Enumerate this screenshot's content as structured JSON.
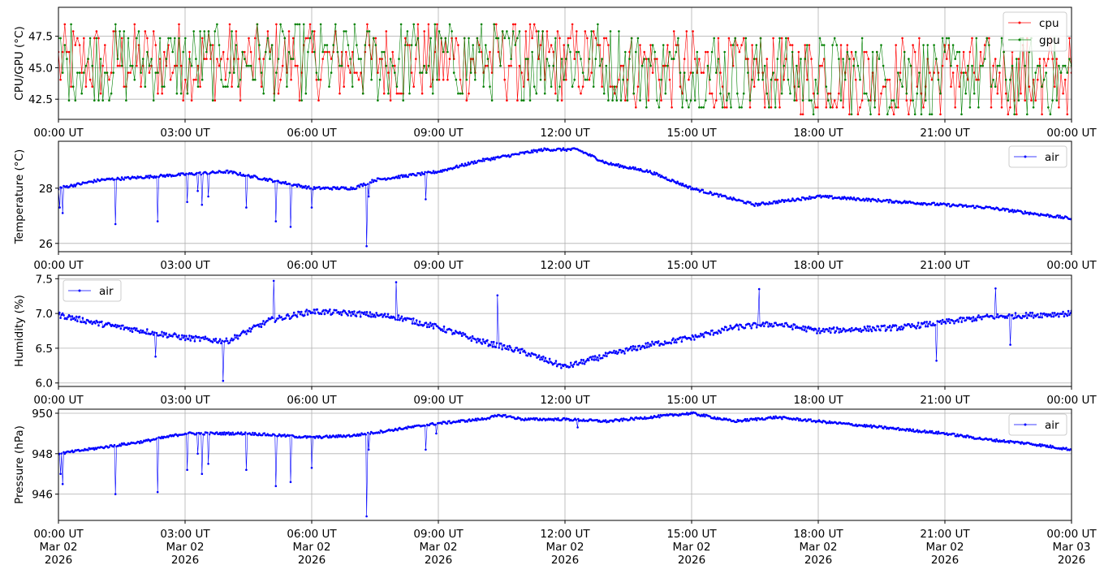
{
  "figure": {
    "x_axis": {
      "time_ticks": [
        "00:00 UT",
        "03:00 UT",
        "06:00 UT",
        "09:00 UT",
        "12:00 UT",
        "15:00 UT",
        "18:00 UT",
        "21:00 UT",
        "00:00 UT"
      ],
      "date_ticks": [
        "Mar 02",
        "Mar 02",
        "Mar 02",
        "Mar 02",
        "Mar 02",
        "Mar 02",
        "Mar 02",
        "Mar 02",
        "Mar 03"
      ],
      "year_ticks": [
        "2026",
        "2026",
        "2026",
        "2026",
        "2026",
        "2026",
        "2026",
        "2026",
        "2026"
      ],
      "range": [
        "2026-03-02T00:00Z",
        "2026-03-03T00:00Z"
      ]
    }
  },
  "colors": {
    "cpu": "#ff0000",
    "gpu": "#008000",
    "air": "#0000ff",
    "grid": "#b0b0b0",
    "axes": "#000000"
  },
  "chart_data": [
    {
      "type": "line",
      "ylabel": "CPU/GPU (°C)",
      "ylim": [
        40.9,
        49.8
      ],
      "yticks": [
        42.5,
        45.0,
        47.5
      ],
      "ytick_labels": [
        "42.5",
        "45.0",
        "47.5"
      ],
      "grid": true,
      "legend": "upper right",
      "legend_entries": [
        "cpu",
        "gpu"
      ],
      "series": [
        {
          "name": "cpu",
          "color_key": "cpu",
          "points_per_day": 480,
          "trend": [
            [
              0,
              45.3
            ],
            [
              12,
              45.6
            ],
            [
              15,
              44.6
            ],
            [
              24,
              44.3
            ]
          ],
          "amplitude": 3.0,
          "outlier": [
            [
              23.3,
              41.3
            ]
          ]
        },
        {
          "name": "gpu",
          "color_key": "gpu",
          "points_per_day": 480,
          "trend": [
            [
              0,
              45.3
            ],
            [
              12,
              45.6
            ],
            [
              15,
              44.6
            ],
            [
              24,
              44.3
            ]
          ],
          "amplitude": 3.0
        }
      ]
    },
    {
      "type": "line",
      "ylabel": "Temperature (°C)",
      "ylim": [
        25.7,
        29.7
      ],
      "yticks": [
        26,
        28
      ],
      "ytick_labels": [
        "26",
        "28"
      ],
      "grid": true,
      "legend": "upper right",
      "legend_entries": [
        "air"
      ],
      "series": [
        {
          "name": "air",
          "color_key": "air",
          "points_per_day": 960,
          "noise": 0.05,
          "trend": [
            [
              0,
              28.0
            ],
            [
              1.0,
              28.3
            ],
            [
              3.0,
              28.5
            ],
            [
              4.0,
              28.6
            ],
            [
              5.0,
              28.3
            ],
            [
              6.0,
              28.0
            ],
            [
              7.0,
              28.0
            ],
            [
              7.5,
              28.3
            ],
            [
              9.0,
              28.6
            ],
            [
              10.0,
              29.0
            ],
            [
              11.5,
              29.4
            ],
            [
              12.3,
              29.4
            ],
            [
              13.0,
              28.9
            ],
            [
              14.0,
              28.6
            ],
            [
              15.0,
              28.0
            ],
            [
              16.0,
              27.6
            ],
            [
              16.5,
              27.4
            ],
            [
              17.0,
              27.5
            ],
            [
              18.0,
              27.7
            ],
            [
              20.0,
              27.5
            ],
            [
              22.0,
              27.3
            ],
            [
              24.0,
              26.9
            ]
          ],
          "spikes": [
            [
              0.03,
              27.3
            ],
            [
              0.1,
              27.1
            ],
            [
              1.35,
              26.7
            ],
            [
              2.35,
              26.8
            ],
            [
              3.05,
              27.5
            ],
            [
              3.3,
              27.9
            ],
            [
              3.4,
              27.4
            ],
            [
              3.55,
              27.7
            ],
            [
              4.45,
              27.3
            ],
            [
              5.15,
              26.8
            ],
            [
              5.5,
              26.6
            ],
            [
              6.0,
              27.3
            ],
            [
              7.3,
              25.9
            ],
            [
              7.35,
              27.7
            ],
            [
              8.7,
              27.6
            ]
          ]
        }
      ]
    },
    {
      "type": "line",
      "ylabel": "Humidity (%)",
      "ylim": [
        5.95,
        7.55
      ],
      "yticks": [
        6.0,
        6.5,
        7.0,
        7.5
      ],
      "ytick_labels": [
        "6.0",
        "6.5",
        "7.0",
        "7.5"
      ],
      "grid": true,
      "legend": "upper left",
      "legend_entries": [
        "air"
      ],
      "series": [
        {
          "name": "air",
          "color_key": "air",
          "points_per_day": 960,
          "noise": 0.04,
          "trend": [
            [
              0,
              6.98
            ],
            [
              1.0,
              6.85
            ],
            [
              2.0,
              6.75
            ],
            [
              3.0,
              6.65
            ],
            [
              4.0,
              6.6
            ],
            [
              5.0,
              6.9
            ],
            [
              6.0,
              7.03
            ],
            [
              7.0,
              7.0
            ],
            [
              8.0,
              6.95
            ],
            [
              9.0,
              6.8
            ],
            [
              10.0,
              6.6
            ],
            [
              11.0,
              6.45
            ],
            [
              12.0,
              6.23
            ],
            [
              13.0,
              6.4
            ],
            [
              14.0,
              6.55
            ],
            [
              15.0,
              6.65
            ],
            [
              16.0,
              6.8
            ],
            [
              17.0,
              6.85
            ],
            [
              18.0,
              6.75
            ],
            [
              20.0,
              6.8
            ],
            [
              22.0,
              6.95
            ],
            [
              24.0,
              7.0
            ]
          ],
          "spikes": [
            [
              2.3,
              6.38
            ],
            [
              3.9,
              6.03
            ],
            [
              5.1,
              7.47
            ],
            [
              8.0,
              7.45
            ],
            [
              10.4,
              7.26
            ],
            [
              16.6,
              7.35
            ],
            [
              20.8,
              6.32
            ],
            [
              22.55,
              6.55
            ],
            [
              22.2,
              7.36
            ]
          ]
        }
      ]
    },
    {
      "type": "line",
      "ylabel": "Pressure (hPa)",
      "ylim": [
        944.7,
        950.2
      ],
      "yticks": [
        946,
        948,
        950
      ],
      "ytick_labels": [
        "946",
        "948",
        "950"
      ],
      "grid": true,
      "legend": "upper right",
      "legend_entries": [
        "air"
      ],
      "series": [
        {
          "name": "air",
          "color_key": "air",
          "points_per_day": 960,
          "noise": 0.06,
          "trend": [
            [
              0,
              948.0
            ],
            [
              1.0,
              948.3
            ],
            [
              2.0,
              948.6
            ],
            [
              3.0,
              949.0
            ],
            [
              4.5,
              949.0
            ],
            [
              6.0,
              948.8
            ],
            [
              7.0,
              948.9
            ],
            [
              8.0,
              949.2
            ],
            [
              9.0,
              949.5
            ],
            [
              10.0,
              949.7
            ],
            [
              10.5,
              949.9
            ],
            [
              11.0,
              949.7
            ],
            [
              12.0,
              949.7
            ],
            [
              13.0,
              949.6
            ],
            [
              14.5,
              949.9
            ],
            [
              15.0,
              950.0
            ],
            [
              16.0,
              949.6
            ],
            [
              17.0,
              949.8
            ],
            [
              18.0,
              949.6
            ],
            [
              19.0,
              949.4
            ],
            [
              20.0,
              949.2
            ],
            [
              21.0,
              949.0
            ],
            [
              22.0,
              948.7
            ],
            [
              23.0,
              948.5
            ],
            [
              24.0,
              948.2
            ]
          ],
          "spikes": [
            [
              0.05,
              947.0
            ],
            [
              0.1,
              946.5
            ],
            [
              1.35,
              946.0
            ],
            [
              2.35,
              946.1
            ],
            [
              3.05,
              947.2
            ],
            [
              3.3,
              948.0
            ],
            [
              3.4,
              947.0
            ],
            [
              3.55,
              947.5
            ],
            [
              4.45,
              947.2
            ],
            [
              5.15,
              946.4
            ],
            [
              5.5,
              946.6
            ],
            [
              6.0,
              947.3
            ],
            [
              7.3,
              944.9
            ],
            [
              7.35,
              948.2
            ],
            [
              8.7,
              948.2
            ],
            [
              8.95,
              949.0
            ],
            [
              12.3,
              949.3
            ]
          ]
        }
      ]
    }
  ]
}
